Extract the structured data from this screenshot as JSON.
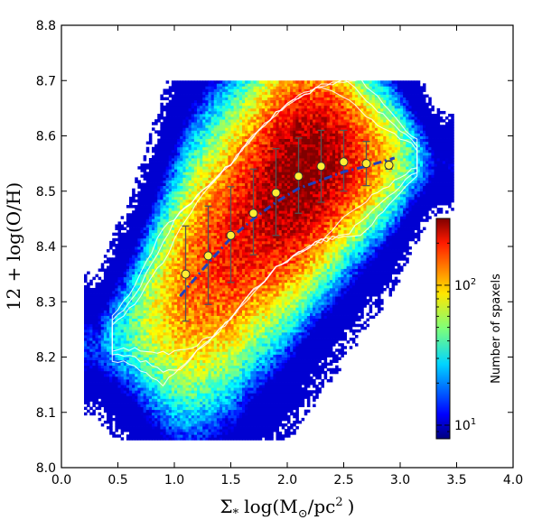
{
  "chart_data": {
    "type": "heatmap",
    "title": "",
    "xlabel_main": "Σ",
    "xlabel_sub": "*",
    "xlabel_log": "log(M",
    "xlabel_sun": "⊙",
    "xlabel_unit": "/pc",
    "xlabel_exp": "2",
    "xlabel_close": ")",
    "ylabel": "12 + log(O/H)",
    "xlim": [
      0.0,
      4.0
    ],
    "ylim": [
      8.0,
      8.8
    ],
    "x_ticks": [
      "0.0",
      "0.5",
      "1.0",
      "1.5",
      "2.0",
      "2.5",
      "3.0",
      "3.5",
      "4.0"
    ],
    "y_ticks": [
      "8.0",
      "8.1",
      "8.2",
      "8.3",
      "8.4",
      "8.5",
      "8.6",
      "8.7",
      "8.8"
    ],
    "grid": false,
    "colorbar": {
      "label": "Number of spaxels",
      "scale": "log",
      "tick_base": "10",
      "ticks": [
        {
          "exp": "1",
          "value": 10
        },
        {
          "exp": "2",
          "value": 100
        }
      ],
      "range": [
        8,
        300
      ]
    },
    "binned_medians": {
      "name": "",
      "x": [
        1.1,
        1.3,
        1.5,
        1.7,
        1.9,
        2.1,
        2.3,
        2.5,
        2.7,
        2.9
      ],
      "y": [
        8.35,
        8.383,
        8.42,
        8.46,
        8.497,
        8.527,
        8.545,
        8.553,
        8.55,
        8.547
      ],
      "y_low": [
        8.265,
        8.295,
        8.335,
        8.385,
        8.42,
        8.46,
        8.48,
        8.5,
        8.51,
        8.54
      ],
      "y_high": [
        8.437,
        8.473,
        8.508,
        8.54,
        8.577,
        8.596,
        8.61,
        8.61,
        8.59,
        8.555
      ]
    },
    "fit_line": {
      "name": "",
      "style": "dash-dot",
      "x": [
        1.05,
        1.3,
        1.5,
        1.7,
        1.9,
        2.1,
        2.3,
        2.5,
        2.7,
        2.95
      ],
      "y": [
        8.31,
        8.37,
        8.415,
        8.45,
        8.48,
        8.505,
        8.52,
        8.535,
        8.545,
        8.56
      ]
    },
    "density_ridge": {
      "x": [
        0.3,
        0.6,
        0.9,
        1.1,
        1.3,
        1.5,
        1.7,
        1.9,
        2.1,
        2.3,
        2.5,
        2.7,
        2.9,
        3.1,
        3.3
      ],
      "center": [
        8.22,
        8.25,
        8.29,
        8.33,
        8.37,
        8.41,
        8.46,
        8.5,
        8.53,
        8.55,
        8.56,
        8.56,
        8.56,
        8.56,
        8.55
      ],
      "spread": [
        0.02,
        0.05,
        0.09,
        0.11,
        0.115,
        0.115,
        0.11,
        0.105,
        0.095,
        0.085,
        0.075,
        0.06,
        0.05,
        0.03,
        0.01
      ],
      "peak": [
        15,
        40,
        90,
        130,
        160,
        190,
        220,
        280,
        320,
        290,
        210,
        140,
        80,
        35,
        10
      ]
    }
  }
}
